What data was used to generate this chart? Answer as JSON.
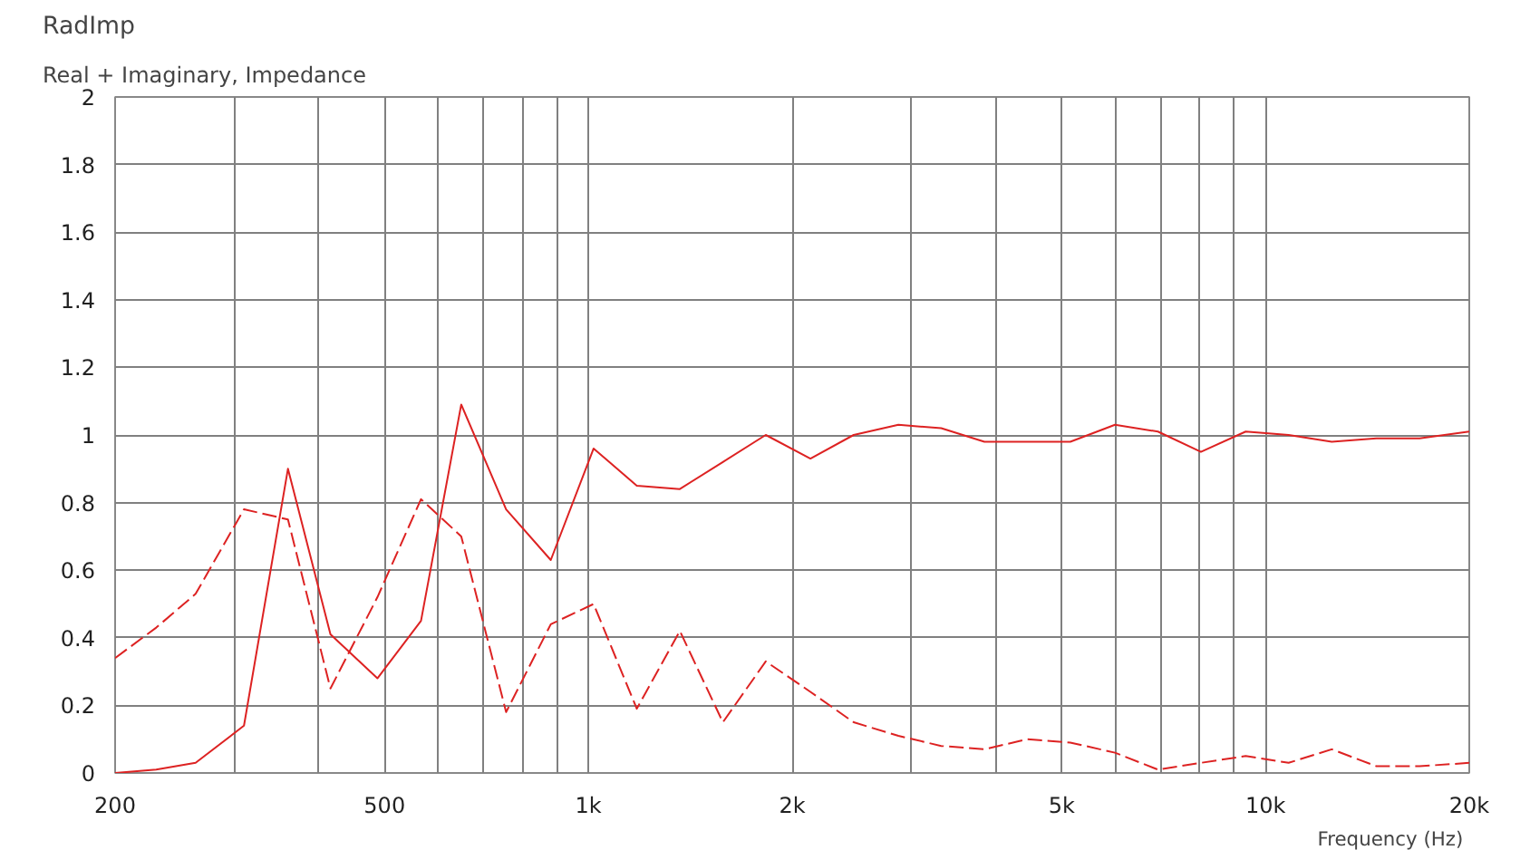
{
  "chart_data": {
    "type": "line",
    "title": "RadImp",
    "subtitle": "Real + Imaginary, Impedance",
    "xlabel": "Frequency  (Hz)",
    "log": "x",
    "x": [
      200,
      230,
      263,
      310,
      360,
      416,
      488,
      566,
      649,
      756,
      880,
      1018,
      1179,
      1365,
      1580,
      1828,
      2128,
      2465,
      2870,
      3320,
      3845,
      4447,
      5150,
      5995,
      6937,
      8030,
      9350,
      10820,
      12530,
      14580,
      16890,
      20000
    ],
    "series": [
      {
        "color": "#dd2222",
        "line_style": "solid",
        "values": [
          0.0,
          0.01,
          0.03,
          0.14,
          0.9,
          0.41,
          0.28,
          0.45,
          1.09,
          0.78,
          0.63,
          0.96,
          0.85,
          0.84,
          0.92,
          1.0,
          0.93,
          1.0,
          1.03,
          1.02,
          0.98,
          0.98,
          0.98,
          1.03,
          1.01,
          0.95,
          1.01,
          1.0,
          0.98,
          0.99,
          0.99,
          1.01
        ]
      },
      {
        "color": "#dd2222",
        "line_style": "dashed",
        "values": [
          0.34,
          0.43,
          0.53,
          0.78,
          0.75,
          0.25,
          0.52,
          0.81,
          0.7,
          0.18,
          0.44,
          0.5,
          0.19,
          0.42,
          0.15,
          0.33,
          0.24,
          0.15,
          0.11,
          0.08,
          0.07,
          0.1,
          0.09,
          0.06,
          0.01,
          0.03,
          0.05,
          0.03,
          0.07,
          0.02,
          0.02,
          0.03
        ]
      }
    ],
    "xlim": [
      200,
      20000
    ],
    "xticks": [
      200,
      {
        "value": 300,
        "label": null
      },
      {
        "value": 400,
        "label": null
      },
      500,
      {
        "value": 600,
        "label": null
      },
      {
        "value": 700,
        "label": null
      },
      {
        "value": 800,
        "label": null
      },
      {
        "value": 900,
        "label": null
      },
      {
        "value": 1000,
        "label": "1k"
      },
      {
        "value": 2000,
        "label": "2k"
      },
      {
        "value": 3000,
        "label": null
      },
      {
        "value": 4000,
        "label": null
      },
      {
        "value": 5000,
        "label": "5k"
      },
      {
        "value": 6000,
        "label": null
      },
      {
        "value": 7000,
        "label": null
      },
      {
        "value": 8000,
        "label": null
      },
      {
        "value": 9000,
        "label": null
      },
      {
        "value": 10000,
        "label": "10k"
      },
      {
        "value": 20000,
        "label": "20k"
      }
    ],
    "ylim": [
      0,
      2
    ],
    "yticks": [
      0,
      0.2,
      0.4,
      0.6,
      0.8,
      1,
      1.2,
      1.4,
      1.6,
      1.8,
      2
    ],
    "grid": true
  }
}
